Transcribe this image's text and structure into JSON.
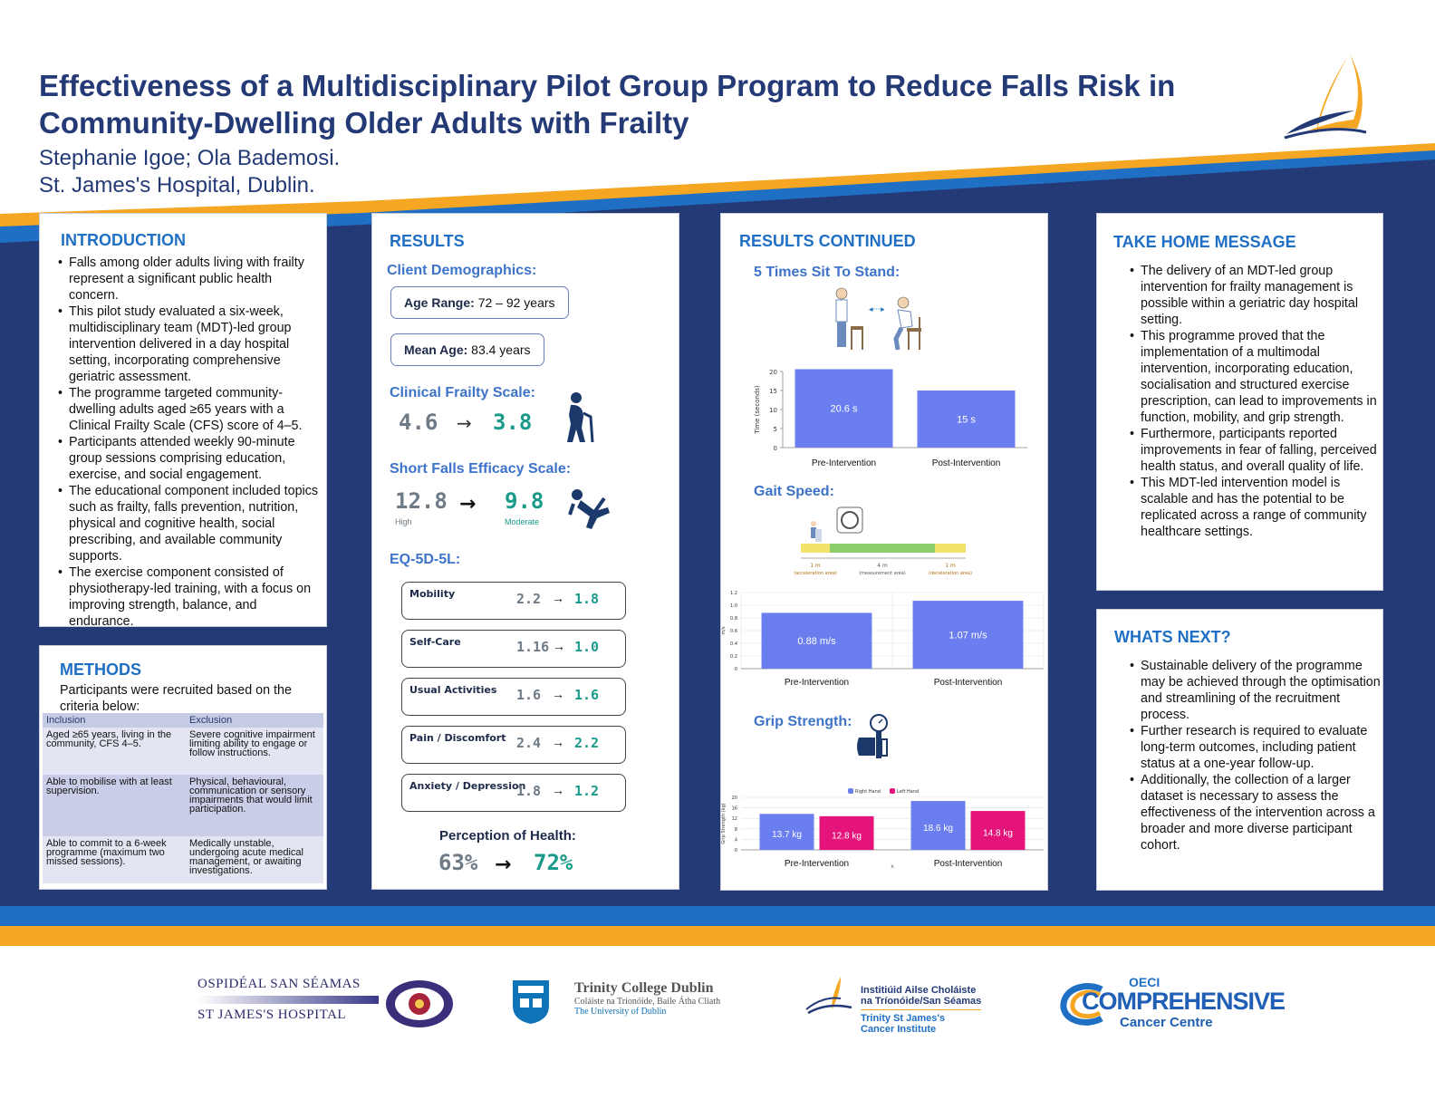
{
  "header": {
    "title_line1": "Effectiveness of a Multidisciplinary Pilot Group Program to Reduce Falls Risk in",
    "title_line2": "Community-Dwelling Older Adults with Frailty",
    "authors": "Stephanie Igoe; Ola Bademosi.",
    "affiliation": "St. James's Hospital, Dublin."
  },
  "colors": {
    "navy": "#243a76",
    "gold": "#f5a623",
    "blue": "#1f6fc4",
    "bar_blue": "#6b7ef0",
    "bar_magenta": "#e5147a"
  },
  "introduction": {
    "heading": "INTRODUCTION",
    "bullets": [
      "Falls among older adults living with frailty represent a significant public health concern.",
      "This pilot study evaluated a six-week, multidisciplinary team (MDT)-led group intervention delivered in a day hospital setting, incorporating comprehensive geriatric assessment.",
      "The programme targeted community-dwelling adults aged ≥65 years with a Clinical Frailty Scale (CFS) score of 4–5.",
      "Participants attended weekly 90-minute group sessions comprising education, exercise, and social engagement.",
      "The educational component included topics such as frailty, falls prevention, nutrition, physical and cognitive health, social prescribing, and available community supports.",
      "The exercise component consisted of physiotherapy-led training, with a focus on improving strength, balance, and endurance."
    ]
  },
  "methods": {
    "heading": "METHODS",
    "intro": "Participants were recruited based on the criteria below:",
    "col_inclusion": "Inclusion",
    "col_exclusion": "Exclusion",
    "rows": [
      {
        "inc": "Aged ≥65 years, living in the community, CFS 4–5.",
        "exc": "Severe cognitive impairment limiting ability to engage or follow instructions."
      },
      {
        "inc": "Able to mobilise with at least supervision.",
        "exc": "Physical, behavioural, communication or sensory impairments that would limit participation."
      },
      {
        "inc": "Able to commit to a 6-week programme (maximum two missed sessions).",
        "exc": "Medically unstable, undergoing acute medical management, or awaiting investigations."
      }
    ]
  },
  "results": {
    "heading": "RESULTS",
    "demographics_heading": "Client Demographics:",
    "age_range_label": "Age Range:",
    "age_range_value": "72 – 92 years",
    "mean_age_label": "Mean Age:",
    "mean_age_value": "83.4 years",
    "cfs_heading": "Clinical Frailty Scale:",
    "cfs_before": "4.6",
    "cfs_after": "3.8",
    "sfes_heading": "Short Falls Efficacy Scale:",
    "sfes_before": "12.8",
    "sfes_before_note": "High",
    "sfes_after": "9.8",
    "sfes_after_note": "Moderate",
    "eq_heading": "EQ-5D-5L:",
    "eq_rows": [
      {
        "label": "Mobility",
        "before": "2.2",
        "after": "1.8"
      },
      {
        "label": "Self-Care",
        "before": "1.16",
        "after": "1.0"
      },
      {
        "label": "Usual Activities",
        "before": "1.6",
        "after": "1.6"
      },
      {
        "label": "Pain / Discomfort",
        "before": "2.4",
        "after": "2.2"
      },
      {
        "label": "Anxiety / Depression",
        "before": "1.8",
        "after": "1.2"
      }
    ],
    "arrow": "→",
    "poh_heading": "Perception of Health:",
    "poh_before": "63%",
    "poh_after": "72%"
  },
  "results_continued": {
    "heading": "RESULTS CONTINUED",
    "sts_heading": "5 Times Sit To Stand:",
    "gait_heading": "Gait Speed:",
    "grip_heading": "Grip Strength:",
    "gait_diagram_labels": [
      "1 m",
      "4 m",
      "1 m"
    ],
    "gait_diagram_sublabels": [
      "(acceleration area)",
      "(measurement area)",
      "(deceleration area)"
    ]
  },
  "chart_data": [
    {
      "type": "bar",
      "categories": [
        "Pre-Intervention",
        "Post-Intervention"
      ],
      "values": [
        20.6,
        15
      ],
      "data_labels": [
        "20.6 s",
        "15 s"
      ],
      "ylabel": "Time (seconds)",
      "ylim": [
        0,
        20
      ],
      "yticks": [
        "0",
        "5",
        "10",
        "15",
        "20"
      ]
    },
    {
      "type": "bar",
      "categories": [
        "Pre-Intervention",
        "Post-Intervention"
      ],
      "values": [
        0.88,
        1.07
      ],
      "data_labels": [
        "0.88 m/s",
        "1.07 m/s"
      ],
      "ylabel": "m/s",
      "ylim": [
        0,
        1.2
      ],
      "yticks": [
        "0",
        "0.2",
        "0.4",
        "0.6",
        "0.8",
        "1.0",
        "1.2"
      ]
    },
    {
      "type": "bar",
      "categories": [
        "Pre-Intervention",
        "Post-Intervention"
      ],
      "series": [
        {
          "name": "Right Hand",
          "values": [
            13.7,
            18.6
          ],
          "data_labels": [
            "13.7 kg",
            "18.6 kg"
          ]
        },
        {
          "name": "Left Hand",
          "values": [
            12.8,
            14.8
          ],
          "data_labels": [
            "12.8 kg",
            "14.8 kg"
          ]
        }
      ],
      "ylabel": "Grip Strength (kg)",
      "ylim": [
        0,
        20
      ],
      "yticks": [
        "0",
        "4",
        "8",
        "12",
        "16",
        "20"
      ],
      "x_marker": "x"
    }
  ],
  "take_home": {
    "heading": "TAKE HOME MESSAGE",
    "bullets": [
      "The delivery of an MDT-led group intervention for frailty management is possible within a geriatric day hospital setting.",
      "This programme proved that the implementation of a multimodal intervention, incorporating education, socialisation and structured exercise prescription, can lead to improvements in function, mobility, and grip strength.",
      "Furthermore, participants reported improvements in fear of falling, perceived health status, and overall quality of life.",
      "This MDT-led intervention model is scalable and has the potential to be replicated across a range of community healthcare settings."
    ]
  },
  "whats_next": {
    "heading": "WHATS NEXT?",
    "bullets": [
      "Sustainable delivery of the programme may be achieved through the optimisation and streamlining of the recruitment process.",
      "Further research is required to evaluate long-term outcomes, including patient status at a one-year follow-up.",
      "Additionally, the collection of a larger dataset is necessary to assess the effectiveness of the intervention across a broader and more diverse participant cohort."
    ]
  },
  "footer": {
    "sjh_line1": "OSPIDÉAL SAN SÉAMAS",
    "sjh_line2": "ST JAMES'S HOSPITAL",
    "tcd_line1": "Trinity College Dublin",
    "tcd_line2": "Coláiste na Tríonóide, Baile Átha Cliath",
    "tcd_line3": "The University of Dublin",
    "stjci_line1": "Institiúid Ailse Choláiste",
    "stjci_line2": "na Tríonóide/San Séamas",
    "stjci_line3": "Trinity St James's",
    "stjci_line4": "Cancer Institute",
    "oeci_top": "OECI",
    "oeci_main": "COMPREHENSIVE",
    "oeci_sub": "Cancer Centre"
  }
}
